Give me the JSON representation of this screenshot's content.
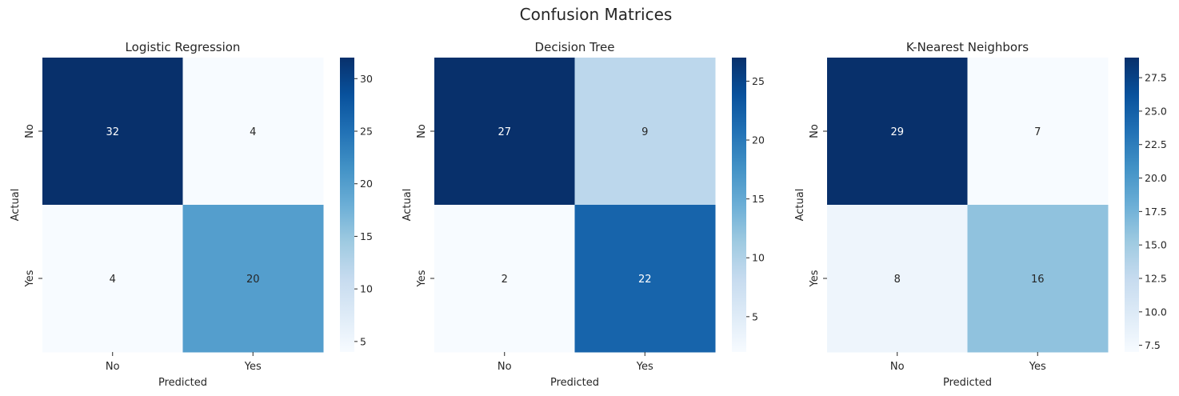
{
  "chart_data": {
    "suptitle": "Confusion Matrices",
    "cmap": [
      "#f7fbff",
      "#deebf7",
      "#c6dbef",
      "#9ecae1",
      "#6baed6",
      "#4292c6",
      "#2171b5",
      "#08519c",
      "#08306b"
    ],
    "panels": [
      {
        "type": "heatmap",
        "title": "Logistic Regression",
        "xlabel": "Predicted",
        "ylabel": "Actual",
        "xticklabels": [
          "No",
          "Yes"
        ],
        "yticklabels": [
          "No",
          "Yes"
        ],
        "matrix": [
          [
            32,
            4
          ],
          [
            4,
            20
          ]
        ],
        "vmin": 4,
        "vmax": 32,
        "colorbar_ticks": [
          "5",
          "10",
          "15",
          "20",
          "25",
          "30"
        ]
      },
      {
        "type": "heatmap",
        "title": "Decision Tree",
        "xlabel": "Predicted",
        "ylabel": "Actual",
        "xticklabels": [
          "No",
          "Yes"
        ],
        "yticklabels": [
          "No",
          "Yes"
        ],
        "matrix": [
          [
            27,
            9
          ],
          [
            2,
            22
          ]
        ],
        "vmin": 2,
        "vmax": 27,
        "colorbar_ticks": [
          "5",
          "10",
          "15",
          "20",
          "25"
        ]
      },
      {
        "type": "heatmap",
        "title": "K-Nearest Neighbors",
        "xlabel": "Predicted",
        "ylabel": "Actual",
        "xticklabels": [
          "No",
          "Yes"
        ],
        "yticklabels": [
          "No",
          "Yes"
        ],
        "matrix": [
          [
            29,
            7
          ],
          [
            8,
            16
          ]
        ],
        "vmin": 7,
        "vmax": 29,
        "colorbar_ticks": [
          "7.5",
          "10.0",
          "12.5",
          "15.0",
          "17.5",
          "20.0",
          "22.5",
          "25.0",
          "27.5"
        ]
      }
    ]
  }
}
